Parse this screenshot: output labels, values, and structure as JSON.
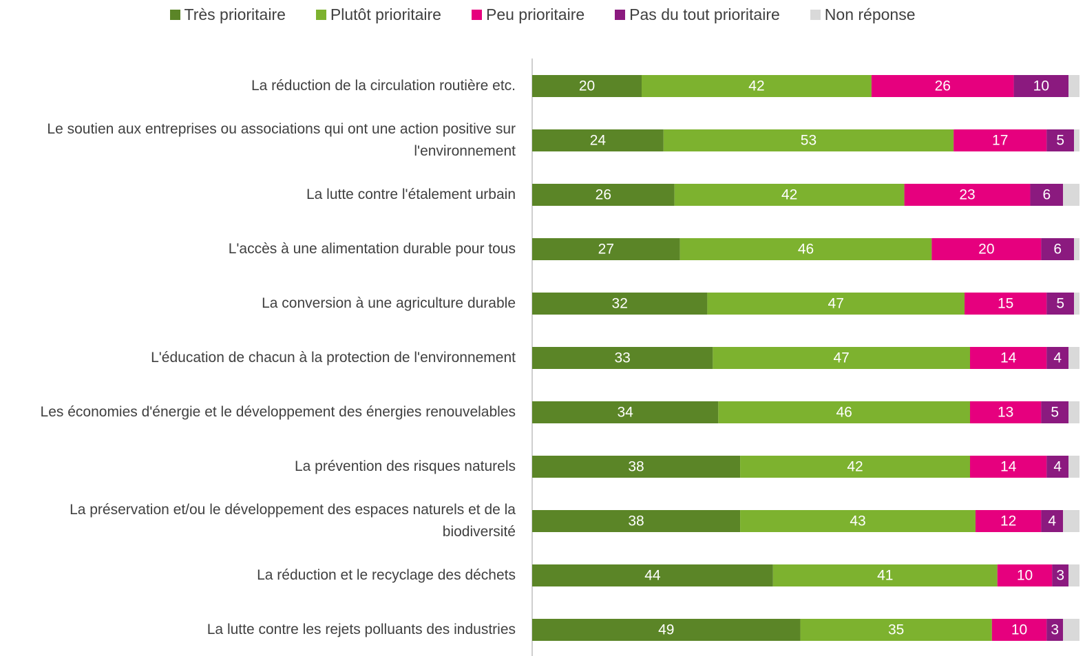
{
  "chart_data": {
    "type": "stacked_bar_horizontal",
    "categories": [
      "La réduction de la circulation routière etc.",
      "Le soutien aux entreprises ou associations qui ont une action positive sur l'environnement",
      "La lutte contre l'étalement urbain",
      "L'accès à une alimentation durable pour tous",
      "La conversion à une agriculture durable",
      "L'éducation de chacun à la protection de l'environnement",
      "Les économies d'énergie et le développement des énergies renouvelables",
      "La prévention des risques naturels",
      "La préservation et/ou le développement des espaces naturels et de la biodiversité",
      "La réduction et le recyclage des déchets",
      "La lutte contre les rejets polluants des industries"
    ],
    "series": [
      {
        "name": "Très prioritaire",
        "color": "#5b8527",
        "values": [
          20,
          24,
          26,
          27,
          32,
          33,
          34,
          38,
          38,
          44,
          49
        ]
      },
      {
        "name": "Plutôt prioritaire",
        "color": "#7db22f",
        "values": [
          42,
          53,
          42,
          46,
          47,
          47,
          46,
          42,
          43,
          41,
          35
        ]
      },
      {
        "name": "Peu prioritaire",
        "color": "#e6007e",
        "values": [
          26,
          17,
          23,
          20,
          15,
          14,
          13,
          14,
          12,
          10,
          10
        ]
      },
      {
        "name": "Pas du tout prioritaire",
        "color": "#8b1a7f",
        "values": [
          10,
          5,
          6,
          6,
          5,
          4,
          5,
          4,
          4,
          3,
          3
        ]
      },
      {
        "name": "Non réponse",
        "color": "#d9d9d9",
        "values": [
          2,
          1,
          3,
          1,
          1,
          2,
          2,
          2,
          3,
          2,
          3
        ],
        "labels": false
      }
    ],
    "xlim": [
      0,
      100
    ],
    "legend": "top"
  }
}
